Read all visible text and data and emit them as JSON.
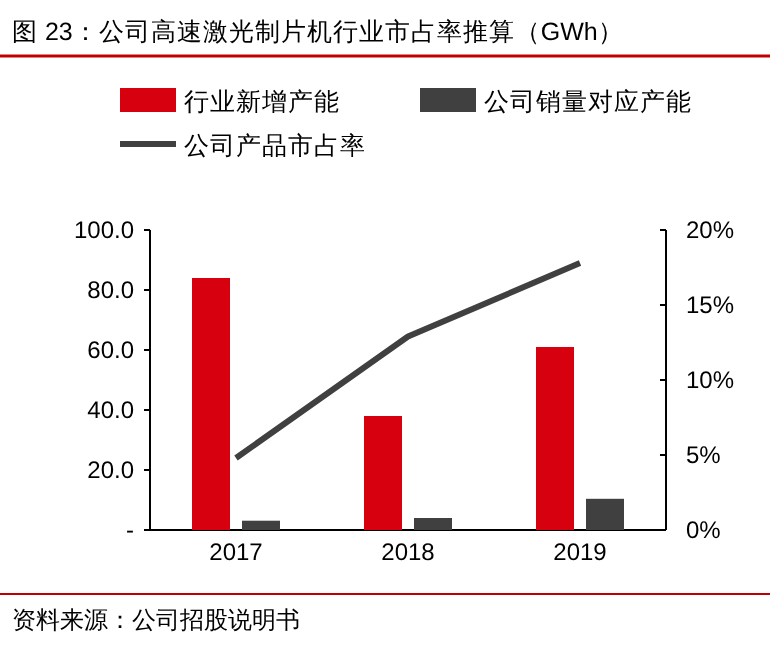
{
  "chart_data": {
    "type": "bar",
    "title": "图 23：公司高速激光制片机行业市占率推算（GWh）",
    "categories": [
      "2017",
      "2018",
      "2019"
    ],
    "series": [
      {
        "name": "行业新增产能",
        "color": "#d7000f",
        "values": [
          84,
          38,
          61
        ]
      },
      {
        "name": "公司销量对应产能",
        "color": "#404040",
        "values": [
          3.1,
          4.0,
          10.4
        ]
      },
      {
        "name": "公司产品市占率",
        "type": "line",
        "axis": "y2",
        "color": "#404040",
        "values": [
          4.8,
          12.9,
          17.8
        ]
      }
    ],
    "ylim": [
      0,
      100
    ],
    "yticks": [
      {
        "value": 0,
        "label": "-"
      },
      {
        "value": 20,
        "label": "20.0"
      },
      {
        "value": 40,
        "label": "40.0"
      },
      {
        "value": 60,
        "label": "60.0"
      },
      {
        "value": 80,
        "label": "80.0"
      },
      {
        "value": 100,
        "label": "100.0"
      }
    ],
    "y2lim": [
      0,
      20
    ],
    "y2ticks": [
      {
        "value": 0,
        "label": "0%"
      },
      {
        "value": 5,
        "label": "5%"
      },
      {
        "value": 10,
        "label": "10%"
      },
      {
        "value": 15,
        "label": "15%"
      },
      {
        "value": 20,
        "label": "20%"
      }
    ],
    "legend": "top",
    "annotations": [
      "资料来源：公司招股说明书"
    ]
  }
}
